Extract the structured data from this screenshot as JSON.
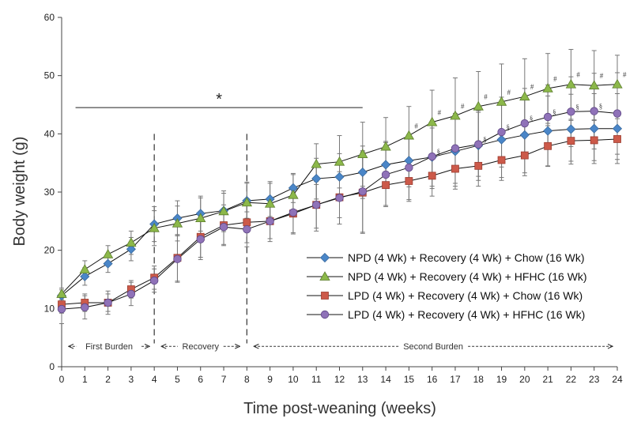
{
  "chart_data": {
    "type": "line",
    "xlabel": "Time post-weaning (weeks)",
    "ylabel": "Body weight (g)",
    "xlim": [
      0,
      24
    ],
    "ylim": [
      0,
      60
    ],
    "x_ticks": [
      0,
      1,
      2,
      3,
      4,
      5,
      6,
      7,
      8,
      9,
      10,
      11,
      12,
      13,
      14,
      15,
      16,
      17,
      18,
      19,
      20,
      21,
      22,
      23,
      24
    ],
    "y_ticks": [
      0,
      10,
      20,
      30,
      40,
      50,
      60
    ],
    "grid": false,
    "legend_position": "lower-right",
    "x": [
      0,
      1,
      2,
      3,
      4,
      5,
      6,
      7,
      8,
      9,
      10,
      11,
      12,
      13,
      14,
      15,
      16,
      17,
      18,
      19,
      20,
      21,
      22,
      23,
      24
    ],
    "series": [
      {
        "name": "NPD (4 Wk) + Recovery (4 Wk) + Chow (16 Wk)",
        "marker": "diamond",
        "color": "#4a86c8",
        "values": [
          12.2,
          15.5,
          17.7,
          20.2,
          24.5,
          25.5,
          26.3,
          26.8,
          28.5,
          28.8,
          30.7,
          32.3,
          32.6,
          33.4,
          34.7,
          35.4,
          36.0,
          37.0,
          38.0,
          39.0,
          39.8,
          40.5,
          40.8,
          40.9,
          40.9
        ],
        "errors": [
          1.0,
          1.5,
          1.5,
          2.0,
          3.0,
          3.0,
          3.0,
          3.0,
          3.0,
          3.0,
          2.5,
          3.5,
          4.0,
          4.5,
          4.0,
          4.5,
          5.0,
          6.0,
          6.0,
          6.5,
          6.5,
          6.0,
          6.0,
          6.0,
          6.0
        ]
      },
      {
        "name": "NPD (4 Wk) + Recovery (4 Wk) + HFHC (16 Wk)",
        "marker": "triangle",
        "color": "#8cb84a",
        "values": [
          12.5,
          16.7,
          19.3,
          21.3,
          23.8,
          24.6,
          25.5,
          26.7,
          28.2,
          28.0,
          29.5,
          34.8,
          35.2,
          36.5,
          37.8,
          39.7,
          42.0,
          43.1,
          44.7,
          45.5,
          46.4,
          47.8,
          48.5,
          48.3,
          48.5
        ],
        "errors": [
          1.0,
          1.5,
          1.5,
          2.0,
          3.0,
          3.0,
          3.5,
          3.5,
          3.5,
          3.5,
          3.5,
          3.5,
          4.5,
          5.5,
          5.0,
          5.0,
          5.5,
          6.5,
          6.0,
          6.5,
          6.5,
          6.0,
          6.0,
          6.0,
          5.0
        ]
      },
      {
        "name": "LPD (4 Wk) + Recovery (4 Wk) + Chow (16 Wk)",
        "marker": "square",
        "color": "#cc5a4a",
        "values": [
          10.7,
          11.0,
          11.0,
          13.3,
          15.3,
          18.7,
          22.3,
          24.3,
          24.8,
          25.0,
          26.3,
          27.8,
          29.1,
          29.9,
          31.2,
          31.9,
          32.8,
          34.0,
          34.5,
          35.5,
          36.3,
          37.9,
          38.8,
          38.9,
          39.1
        ],
        "errors": [
          1.5,
          1.5,
          1.5,
          1.5,
          2.0,
          4.0,
          3.5,
          3.5,
          3.5,
          3.5,
          3.5,
          4.5,
          3.5,
          7.0,
          3.5,
          3.5,
          3.5,
          3.5,
          3.5,
          3.5,
          3.5,
          3.5,
          3.5,
          3.5,
          3.5
        ]
      },
      {
        "name": "LPD (4 Wk) + Recovery (4 Wk) + HFHC (16 Wk)",
        "marker": "circle",
        "color": "#8f72b8",
        "values": [
          9.9,
          10.2,
          11.0,
          12.5,
          14.8,
          18.5,
          21.9,
          24.0,
          23.6,
          25.0,
          26.5,
          27.8,
          29.0,
          30.1,
          33.0,
          34.2,
          36.1,
          37.5,
          38.2,
          40.3,
          41.8,
          42.9,
          43.8,
          43.9,
          43.5
        ],
        "errors": [
          2.5,
          2.0,
          2.0,
          2.0,
          2.0,
          4.0,
          3.5,
          3.0,
          3.0,
          3.0,
          3.5,
          4.0,
          4.5,
          7.0,
          5.5,
          5.5,
          5.5,
          6.0,
          5.5,
          6.0,
          6.0,
          5.5,
          6.0,
          6.5,
          7.0
        ]
      }
    ],
    "annotations": {
      "significance_star": "*",
      "significance_bar_x": [
        0.6,
        13
      ],
      "significance_bar_y": 44.5,
      "phase_dividers_x": [
        4,
        8
      ],
      "phases": [
        {
          "label": "First Burden",
          "start": 0.3,
          "end": 3.8
        },
        {
          "label": "Recovery",
          "start": 4.3,
          "end": 7.7
        },
        {
          "label": "Second Burden",
          "start": 8.3,
          "end": 23.8
        }
      ],
      "hash_mark": "#",
      "section_mark": "§",
      "hash_weeks": [
        15,
        16,
        17,
        18,
        19,
        20,
        21,
        22,
        23,
        24
      ],
      "section_weeks": [
        16,
        18,
        19,
        20,
        21,
        22,
        23
      ]
    }
  }
}
